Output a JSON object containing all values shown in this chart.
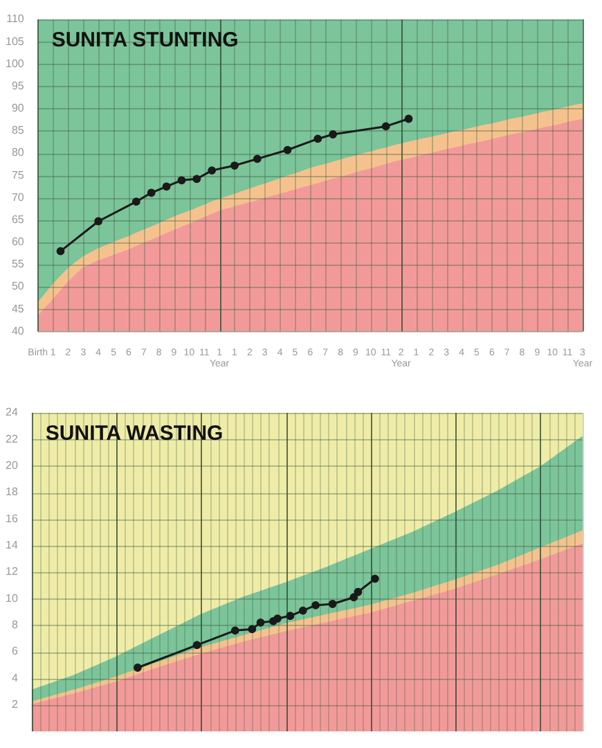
{
  "chart_data": [
    {
      "type": "line",
      "title": "SUNITA STUNTING",
      "categories": [
        "Birth",
        null,
        "1",
        null,
        "2",
        null,
        "3",
        null,
        "4",
        null,
        "5",
        null,
        "6",
        null,
        "7",
        null,
        "8",
        null,
        "9",
        null,
        "10",
        null,
        "11",
        null,
        "1 Year",
        null,
        "1",
        null,
        "2",
        null,
        "3",
        null,
        "4",
        null,
        "5",
        null,
        "6",
        null,
        "7",
        null,
        "8",
        null,
        "9",
        null,
        "10",
        null,
        "11",
        null,
        "2 Year",
        null,
        "1",
        null,
        "2",
        null,
        "3",
        null,
        "4",
        null,
        "5",
        null,
        "6",
        null,
        "7",
        null,
        "8",
        null,
        "9",
        null,
        "10",
        null,
        "11",
        null,
        "3 Year"
      ],
      "bands": [
        {
          "axis": "y",
          "from": 40,
          "to": 110,
          "color": "#7cc49a"
        }
      ],
      "series": [
        {
          "type": "area",
          "color": "#f5c28e",
          "values": [
            46.3,
            48.4,
            50.5,
            52.3,
            54.0,
            55.4,
            56.7,
            57.6,
            58.5,
            59.2,
            59.9,
            60.6,
            61.2,
            62.0,
            62.7,
            63.4,
            64.1,
            64.9,
            65.6,
            66.3,
            66.9,
            67.6,
            68.3,
            69.0,
            69.6,
            70.2,
            70.7,
            71.3,
            71.9,
            72.5,
            73.0,
            73.6,
            74.2,
            74.8,
            75.3,
            75.9,
            76.5,
            77.0,
            77.4,
            77.9,
            78.4,
            78.9,
            79.3,
            79.8,
            80.2,
            80.7,
            81.1,
            81.6,
            82.0,
            82.4,
            82.8,
            83.2,
            83.5,
            83.9,
            84.3,
            84.7,
            85.0,
            85.4,
            85.8,
            86.2,
            86.5,
            86.9,
            87.3,
            87.7,
            88.0,
            88.4,
            88.8,
            89.2,
            89.5,
            89.9,
            90.3,
            90.7,
            91.0
          ]
        },
        {
          "type": "area",
          "color": "#f29a9a",
          "values": [
            43.3,
            45.2,
            47.0,
            49.0,
            51.0,
            52.6,
            54.2,
            55.0,
            55.8,
            56.4,
            57.0,
            57.6,
            58.2,
            59.0,
            59.7,
            60.4,
            61.1,
            61.9,
            62.6,
            63.3,
            64.0,
            64.8,
            65.5,
            66.2,
            66.9,
            67.4,
            67.9,
            68.4,
            68.8,
            69.3,
            69.8,
            70.3,
            70.7,
            71.2,
            71.7,
            72.2,
            72.6,
            73.1,
            73.6,
            74.1,
            74.5,
            75.0,
            75.5,
            76.0,
            76.4,
            76.9,
            77.4,
            77.9,
            78.3,
            78.7,
            79.1,
            79.5,
            79.9,
            80.3,
            80.7,
            81.1,
            81.5,
            81.9,
            82.2,
            82.6,
            83.0,
            83.4,
            83.8,
            84.2,
            84.5,
            84.9,
            85.3,
            85.7,
            86.0,
            86.4,
            86.8,
            87.2,
            87.5
          ]
        },
        {
          "type": "line",
          "color": "#1a1a1a",
          "marker": "circle",
          "values": [
            null,
            null,
            null,
            58,
            null,
            null,
            null,
            null,
            64.7,
            null,
            null,
            null,
            null,
            69.1,
            null,
            71.1,
            null,
            72.5,
            null,
            73.9,
            null,
            74.2,
            null,
            76.1,
            null,
            null,
            77.2,
            null,
            null,
            78.7,
            null,
            null,
            null,
            80.7,
            null,
            null,
            null,
            83.2,
            null,
            84.2,
            null,
            null,
            null,
            null,
            null,
            null,
            86,
            null,
            null,
            87.7,
            null,
            null,
            null,
            null,
            null,
            null,
            null,
            null,
            null,
            null,
            null,
            null,
            null,
            null,
            null,
            null,
            null,
            null,
            null,
            null,
            null,
            null,
            null
          ]
        }
      ],
      "ylim": [
        40,
        110
      ],
      "yticks": [
        40,
        45,
        50,
        55,
        60,
        65,
        70,
        75,
        80,
        85,
        90,
        95,
        100,
        105,
        110
      ],
      "grid": true,
      "legend": false,
      "line_style": "solid"
    },
    {
      "type": "line",
      "title": "SUNITA WASTING",
      "categories": [
        null,
        null,
        null,
        null,
        null,
        null,
        null,
        null,
        null,
        null,
        null,
        null,
        null,
        null,
        null,
        null,
        null,
        null,
        null,
        null,
        null,
        null,
        null,
        null,
        null,
        null,
        null,
        null,
        null,
        null,
        null,
        null,
        null,
        null,
        null,
        null,
        null,
        null,
        null,
        null,
        null,
        null,
        null,
        null,
        null,
        null,
        null,
        null,
        null,
        null,
        null,
        null,
        null,
        null,
        null,
        null,
        null,
        null,
        null,
        null,
        null,
        null,
        null,
        null,
        null,
        null,
        null,
        null,
        null,
        null,
        null,
        null,
        null,
        null,
        null,
        null,
        null,
        null,
        null,
        null,
        null,
        null,
        null,
        null,
        null,
        null,
        null,
        null,
        null,
        null,
        null,
        null,
        null,
        null,
        null,
        null,
        null,
        null,
        null,
        null,
        null,
        null,
        null,
        null,
        null,
        null,
        null,
        null,
        null,
        null,
        null,
        null,
        null,
        null,
        null,
        null,
        null,
        null,
        null,
        null,
        null,
        null,
        null,
        null,
        null,
        null,
        null,
        null,
        null,
        null,
        null
      ],
      "bands": [
        {
          "axis": "y",
          "from": 0,
          "to": 24,
          "color": "#efeca8"
        }
      ],
      "series": [
        {
          "type": "area",
          "color": "#7cc49a",
          "values": [
            3.1,
            null,
            null,
            null,
            null,
            null,
            null,
            null,
            null,
            null,
            4.2,
            null,
            null,
            null,
            null,
            null,
            null,
            null,
            null,
            null,
            5.6,
            null,
            null,
            null,
            null,
            null,
            null,
            null,
            null,
            null,
            7.2,
            null,
            null,
            null,
            null,
            null,
            null,
            null,
            null,
            null,
            8.8,
            null,
            null,
            null,
            null,
            null,
            null,
            null,
            null,
            null,
            10.1,
            null,
            null,
            null,
            null,
            null,
            null,
            null,
            null,
            null,
            11.2,
            null,
            null,
            null,
            null,
            null,
            null,
            null,
            null,
            null,
            12.4,
            null,
            null,
            null,
            null,
            null,
            null,
            null,
            null,
            null,
            13.7,
            null,
            null,
            null,
            null,
            null,
            null,
            null,
            null,
            null,
            15,
            null,
            null,
            null,
            null,
            null,
            null,
            null,
            null,
            null,
            16.5,
            null,
            null,
            null,
            null,
            null,
            null,
            null,
            null,
            null,
            18.1,
            null,
            null,
            null,
            null,
            null,
            null,
            null,
            null,
            null,
            19.9,
            null,
            null,
            null,
            null,
            null,
            null,
            null,
            null,
            null,
            22.2
          ]
        },
        {
          "type": "area",
          "color": "#f5c28e",
          "values": [
            2.2,
            null,
            null,
            null,
            null,
            null,
            null,
            null,
            null,
            null,
            3.1,
            null,
            null,
            null,
            null,
            null,
            null,
            null,
            null,
            null,
            4.1,
            null,
            null,
            null,
            null,
            null,
            null,
            null,
            null,
            null,
            5.2,
            null,
            null,
            null,
            null,
            null,
            null,
            null,
            null,
            null,
            6.3,
            null,
            null,
            null,
            null,
            null,
            null,
            null,
            null,
            null,
            7.2,
            null,
            null,
            null,
            null,
            null,
            null,
            null,
            null,
            null,
            8.1,
            null,
            null,
            null,
            null,
            null,
            null,
            null,
            null,
            null,
            8.8,
            null,
            null,
            null,
            null,
            null,
            null,
            null,
            null,
            null,
            9.5,
            null,
            null,
            null,
            null,
            null,
            null,
            null,
            null,
            null,
            10.4,
            null,
            null,
            null,
            null,
            null,
            null,
            null,
            null,
            null,
            11.4,
            null,
            null,
            null,
            null,
            null,
            null,
            null,
            null,
            null,
            12.5,
            null,
            null,
            null,
            null,
            null,
            null,
            null,
            null,
            null,
            13.8,
            null,
            null,
            null,
            null,
            null,
            null,
            null,
            null,
            null,
            15.1
          ]
        },
        {
          "type": "area",
          "color": "#f29a9a",
          "values": [
            2,
            null,
            null,
            null,
            null,
            null,
            null,
            null,
            null,
            null,
            2.8,
            null,
            null,
            null,
            null,
            null,
            null,
            null,
            null,
            null,
            3.7,
            null,
            null,
            null,
            null,
            null,
            null,
            null,
            null,
            null,
            4.8,
            null,
            null,
            null,
            null,
            null,
            null,
            null,
            null,
            null,
            5.8,
            null,
            null,
            null,
            null,
            null,
            null,
            null,
            null,
            null,
            6.7,
            null,
            null,
            null,
            null,
            null,
            null,
            null,
            null,
            null,
            7.5,
            null,
            null,
            null,
            null,
            null,
            null,
            null,
            null,
            null,
            8.2,
            null,
            null,
            null,
            null,
            null,
            null,
            null,
            null,
            null,
            8.9,
            null,
            null,
            null,
            null,
            null,
            null,
            null,
            null,
            null,
            9.8,
            null,
            null,
            null,
            null,
            null,
            null,
            null,
            null,
            null,
            10.7,
            null,
            null,
            null,
            null,
            null,
            null,
            null,
            null,
            null,
            11.8,
            null,
            null,
            null,
            null,
            null,
            null,
            null,
            null,
            null,
            12.9,
            null,
            null,
            null,
            null,
            null,
            null,
            null,
            null,
            null,
            14.1
          ]
        },
        {
          "type": "line",
          "color": "#1a1a1a",
          "marker": "circle",
          "values": [
            null,
            null,
            null,
            null,
            null,
            null,
            null,
            null,
            null,
            null,
            null,
            null,
            null,
            null,
            null,
            null,
            null,
            null,
            null,
            null,
            null,
            null,
            null,
            null,
            null,
            4.8,
            null,
            null,
            null,
            null,
            null,
            null,
            null,
            null,
            null,
            null,
            null,
            null,
            null,
            6.5,
            null,
            null,
            null,
            null,
            null,
            null,
            null,
            null,
            7.6,
            null,
            null,
            null,
            7.7,
            null,
            8.2,
            null,
            null,
            8.3,
            8.5,
            null,
            null,
            8.7,
            null,
            null,
            9.1,
            null,
            null,
            9.5,
            null,
            null,
            null,
            9.6,
            null,
            null,
            null,
            null,
            10.1,
            10.5,
            null,
            null,
            null,
            11.5,
            null,
            null,
            null,
            null,
            null,
            null,
            null,
            null,
            null,
            null,
            null,
            null,
            null,
            null,
            null,
            null,
            null,
            null,
            null,
            null,
            null,
            null,
            null,
            null,
            null,
            null,
            null,
            null,
            null,
            null,
            null,
            null,
            null,
            null,
            null,
            null,
            null,
            null,
            null,
            null,
            null,
            null,
            null,
            null,
            null,
            null,
            null,
            null,
            null
          ]
        }
      ],
      "ylim": [
        0,
        24
      ],
      "yticks": [
        2,
        4,
        6,
        8,
        10,
        12,
        14,
        16,
        18,
        20,
        22,
        24
      ],
      "tick_labels": "y",
      "grid": true,
      "legend": false,
      "line_style": "solid"
    }
  ]
}
